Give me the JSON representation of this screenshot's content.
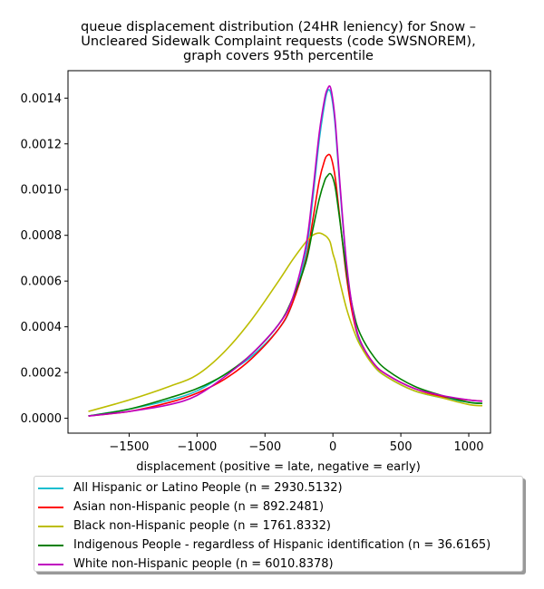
{
  "chart_data": {
    "type": "line",
    "title": "queue displacement distribution (24HR leniency) for Snow –\nUncleared Sidewalk Complaint  requests (code SWSNOREM),\ngraph covers 95th percentile",
    "xlabel": "displacement (positive = late, negative = early)",
    "ylabel": "",
    "xlim": [
      -1950,
      1160
    ],
    "ylim": [
      -6.5e-05,
      0.00152
    ],
    "x_ticks": [
      -1500,
      -1000,
      -500,
      0,
      500,
      1000
    ],
    "x_tick_labels": [
      "−1500",
      "−1000",
      "−500",
      "0",
      "500",
      "1000"
    ],
    "y_ticks": [
      0,
      0.0002,
      0.0004,
      0.0006,
      0.0008,
      0.001,
      0.0012,
      0.0014
    ],
    "y_tick_labels": [
      "0.0000",
      "0.0002",
      "0.0004",
      "0.0006",
      "0.0008",
      "0.0010",
      "0.0012",
      "0.0014"
    ],
    "grid": false,
    "legend_position": "below plot",
    "series": [
      {
        "name": "All Hispanic or Latino People (n = 2930.5132)",
        "color": "#17becf",
        "x": [
          -1800,
          -1500,
          -1200,
          -1000,
          -800,
          -600,
          -400,
          -300,
          -200,
          -150,
          -100,
          -60,
          -40,
          -20,
          0,
          20,
          50,
          100,
          150,
          200,
          300,
          400,
          600,
          800,
          1000,
          1100
        ],
        "y": [
          1e-05,
          4e-05,
          8e-05,
          0.00012,
          0.00019,
          0.00027,
          0.00039,
          0.0005,
          0.00072,
          0.00095,
          0.00122,
          0.00138,
          0.00143,
          0.00143,
          0.00137,
          0.00126,
          0.00102,
          0.00067,
          0.00045,
          0.00033,
          0.00023,
          0.00018,
          0.00012,
          9e-05,
          7e-05,
          6.5e-05
        ]
      },
      {
        "name": "Asian non-Hispanic people (n = 892.2481)",
        "color": "#ff0000",
        "x": [
          -1800,
          -1500,
          -1200,
          -1000,
          -800,
          -600,
          -400,
          -300,
          -200,
          -150,
          -100,
          -60,
          -40,
          -20,
          0,
          20,
          50,
          100,
          150,
          200,
          300,
          400,
          600,
          800,
          1000,
          1100
        ],
        "y": [
          1e-05,
          3e-05,
          7e-05,
          0.00011,
          0.00017,
          0.00026,
          0.00039,
          0.0005,
          0.00069,
          0.00086,
          0.00104,
          0.00113,
          0.00115,
          0.00115,
          0.00111,
          0.00104,
          0.00088,
          0.00062,
          0.00044,
          0.00034,
          0.00024,
          0.00019,
          0.00013,
          9.5e-05,
          8e-05,
          7.5e-05
        ]
      },
      {
        "name": "Black non-Hispanic people (n = 1761.8332)",
        "color": "#bcbd00",
        "x": [
          -1800,
          -1500,
          -1200,
          -1000,
          -800,
          -600,
          -400,
          -300,
          -200,
          -150,
          -100,
          -60,
          -40,
          -20,
          0,
          20,
          50,
          100,
          150,
          200,
          300,
          400,
          600,
          800,
          1000,
          1100
        ],
        "y": [
          3e-05,
          8e-05,
          0.00014,
          0.00019,
          0.00029,
          0.00043,
          0.0006,
          0.00069,
          0.00077,
          0.0008,
          0.00081,
          0.0008,
          0.00079,
          0.00077,
          0.00072,
          0.00068,
          0.0006,
          0.00048,
          0.00039,
          0.00032,
          0.00023,
          0.00018,
          0.00012,
          9e-05,
          6e-05,
          5.5e-05
        ]
      },
      {
        "name": "Indigenous People - regardless of Hispanic identification (n = 36.6165)",
        "color": "#008000",
        "x": [
          -1800,
          -1500,
          -1200,
          -1000,
          -800,
          -600,
          -400,
          -300,
          -200,
          -150,
          -100,
          -60,
          -40,
          -20,
          0,
          20,
          50,
          100,
          150,
          200,
          300,
          400,
          600,
          800,
          1000,
          1100
        ],
        "y": [
          1e-05,
          4e-05,
          9e-05,
          0.00013,
          0.00019,
          0.00028,
          0.00041,
          0.00052,
          0.00068,
          0.00082,
          0.00096,
          0.00104,
          0.00106,
          0.00107,
          0.00105,
          0.001,
          0.00087,
          0.00064,
          0.00047,
          0.00037,
          0.00027,
          0.00021,
          0.00014,
          0.0001,
          7e-05,
          6.5e-05
        ]
      },
      {
        "name": "White non-Hispanic people (n = 6010.8378)",
        "color": "#bf00bf",
        "x": [
          -1800,
          -1500,
          -1200,
          -1000,
          -800,
          -600,
          -400,
          -300,
          -200,
          -150,
          -100,
          -60,
          -40,
          -20,
          0,
          20,
          50,
          100,
          150,
          200,
          300,
          400,
          600,
          800,
          1000,
          1100
        ],
        "y": [
          1e-05,
          3e-05,
          6e-05,
          0.0001,
          0.00018,
          0.00028,
          0.00041,
          0.00052,
          0.00075,
          0.00098,
          0.00125,
          0.0014,
          0.00144,
          0.00145,
          0.00139,
          0.00128,
          0.00104,
          0.00068,
          0.00046,
          0.00034,
          0.00024,
          0.00019,
          0.00013,
          0.0001,
          8e-05,
          7.5e-05
        ]
      }
    ]
  }
}
